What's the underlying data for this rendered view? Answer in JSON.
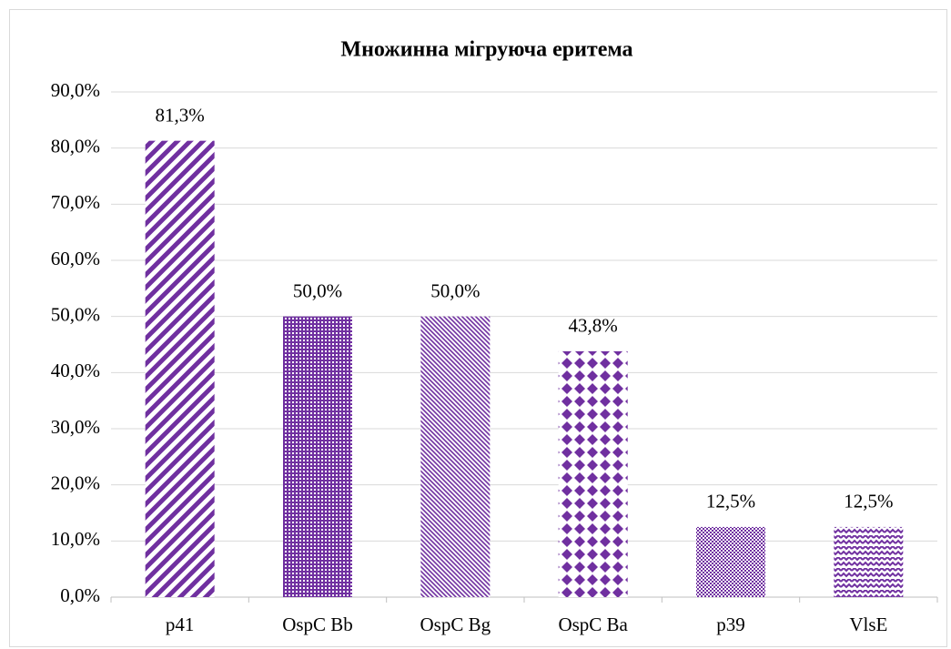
{
  "chart_data": {
    "type": "bar",
    "title": "Множинна мігруюча еритема",
    "categories": [
      "p41",
      "OspC Bb",
      "OspC Bg",
      "OspC Ba",
      "p39",
      "VlsE"
    ],
    "values": [
      81.3,
      50.0,
      50.0,
      43.8,
      12.5,
      12.5
    ],
    "value_labels": [
      "81,3%",
      "50,0%",
      "50,0%",
      "43,8%",
      "12,5%",
      "12,5%"
    ],
    "color": "#7030a0",
    "ylim": [
      0,
      90
    ],
    "yticks": [
      {
        "value": 0,
        "label": "0,0%"
      },
      {
        "value": 10,
        "label": "10,0%"
      },
      {
        "value": 20,
        "label": "20,0%"
      },
      {
        "value": 30,
        "label": "30,0%"
      },
      {
        "value": 40,
        "label": "40,0%"
      },
      {
        "value": 50,
        "label": "50,0%"
      },
      {
        "value": 60,
        "label": "60,0%"
      },
      {
        "value": 70,
        "label": "70,0%"
      },
      {
        "value": 80,
        "label": "80,0%"
      },
      {
        "value": 90,
        "label": "90,0%"
      }
    ],
    "grid": true
  }
}
